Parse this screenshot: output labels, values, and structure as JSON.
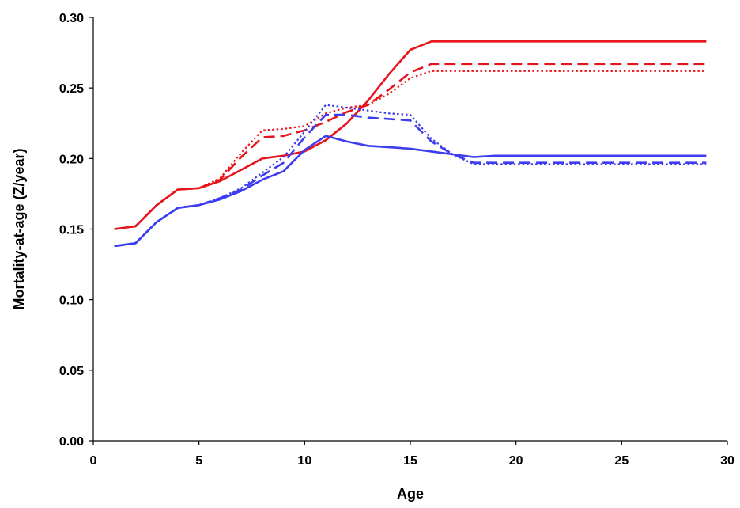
{
  "chart_data": {
    "type": "line",
    "title": "",
    "xlabel": "Age",
    "ylabel": "Mortality-at-age (Z/year)",
    "xlim": [
      0,
      30
    ],
    "ylim": [
      0,
      0.3
    ],
    "x_ticks": [
      "0",
      "5",
      "10",
      "15",
      "20",
      "25",
      "30"
    ],
    "y_ticks": [
      "0.00",
      "0.05",
      "0.10",
      "0.15",
      "0.20",
      "0.25",
      "0.30"
    ],
    "grid": false,
    "legend": "none",
    "series": [
      {
        "color": "#e8141c",
        "style": "solid",
        "x": [
          1,
          2,
          3,
          4,
          5,
          6,
          7,
          8,
          9,
          10,
          11,
          12,
          13,
          14,
          15,
          16,
          17,
          18,
          19,
          20,
          21,
          22,
          23,
          24,
          25,
          26,
          27,
          28,
          29
        ],
        "y": [
          0.15,
          0.152,
          0.167,
          0.178,
          0.179,
          0.184,
          0.192,
          0.2,
          0.202,
          0.205,
          0.213,
          0.225,
          0.241,
          0.26,
          0.277,
          0.283,
          0.283,
          0.283,
          0.283,
          0.283,
          0.283,
          0.283,
          0.283,
          0.283,
          0.283,
          0.283,
          0.283,
          0.283,
          0.283
        ]
      },
      {
        "color": "#e8141c",
        "style": "dashed",
        "x": [
          1,
          2,
          3,
          4,
          5,
          6,
          7,
          8,
          9,
          10,
          11,
          12,
          13,
          14,
          15,
          16,
          17,
          18,
          19,
          20,
          21,
          22,
          23,
          24,
          25,
          26,
          27,
          28,
          29
        ],
        "y": [
          0.15,
          0.152,
          0.167,
          0.178,
          0.179,
          0.185,
          0.201,
          0.215,
          0.216,
          0.22,
          0.226,
          0.233,
          0.238,
          0.249,
          0.261,
          0.267,
          0.267,
          0.267,
          0.267,
          0.267,
          0.267,
          0.267,
          0.267,
          0.267,
          0.267,
          0.267,
          0.267,
          0.267,
          0.267
        ]
      },
      {
        "color": "#e8141c",
        "style": "dotted",
        "x": [
          1,
          2,
          3,
          4,
          5,
          6,
          7,
          8,
          9,
          10,
          11,
          12,
          13,
          14,
          15,
          16,
          17,
          18,
          19,
          20,
          21,
          22,
          23,
          24,
          25,
          26,
          27,
          28,
          29
        ],
        "y": [
          0.15,
          0.152,
          0.167,
          0.178,
          0.179,
          0.186,
          0.204,
          0.22,
          0.221,
          0.223,
          0.232,
          0.236,
          0.238,
          0.246,
          0.257,
          0.262,
          0.262,
          0.262,
          0.262,
          0.262,
          0.262,
          0.262,
          0.262,
          0.262,
          0.262,
          0.262,
          0.262,
          0.262,
          0.262
        ]
      },
      {
        "color": "#3c3cf0",
        "style": "solid",
        "x": [
          1,
          2,
          3,
          4,
          5,
          6,
          7,
          8,
          9,
          10,
          11,
          12,
          13,
          14,
          15,
          16,
          17,
          18,
          19,
          20,
          21,
          22,
          23,
          24,
          25,
          26,
          27,
          28,
          29
        ],
        "y": [
          0.138,
          0.14,
          0.155,
          0.165,
          0.167,
          0.171,
          0.177,
          0.185,
          0.191,
          0.206,
          0.216,
          0.212,
          0.209,
          0.208,
          0.207,
          0.205,
          0.203,
          0.201,
          0.202,
          0.202,
          0.202,
          0.202,
          0.202,
          0.202,
          0.202,
          0.202,
          0.202,
          0.202,
          0.202
        ]
      },
      {
        "color": "#3c3cf0",
        "style": "dashed",
        "x": [
          1,
          2,
          3,
          4,
          5,
          6,
          7,
          8,
          9,
          10,
          11,
          12,
          13,
          14,
          15,
          16,
          17,
          18,
          19,
          20,
          21,
          22,
          23,
          24,
          25,
          26,
          27,
          28,
          29
        ],
        "y": [
          0.138,
          0.14,
          0.155,
          0.165,
          0.167,
          0.172,
          0.178,
          0.188,
          0.197,
          0.215,
          0.231,
          0.231,
          0.229,
          0.228,
          0.227,
          0.212,
          0.203,
          0.197,
          0.197,
          0.197,
          0.197,
          0.197,
          0.197,
          0.197,
          0.197,
          0.197,
          0.197,
          0.197,
          0.197
        ]
      },
      {
        "color": "#3c3cf0",
        "style": "dotted",
        "x": [
          1,
          2,
          3,
          4,
          5,
          6,
          7,
          8,
          9,
          10,
          11,
          12,
          13,
          14,
          15,
          16,
          17,
          18,
          19,
          20,
          21,
          22,
          23,
          24,
          25,
          26,
          27,
          28,
          29
        ],
        "y": [
          0.138,
          0.14,
          0.155,
          0.165,
          0.167,
          0.172,
          0.179,
          0.19,
          0.201,
          0.219,
          0.238,
          0.236,
          0.234,
          0.232,
          0.231,
          0.214,
          0.203,
          0.196,
          0.196,
          0.196,
          0.196,
          0.196,
          0.196,
          0.196,
          0.196,
          0.196,
          0.196,
          0.196,
          0.196
        ]
      }
    ]
  }
}
